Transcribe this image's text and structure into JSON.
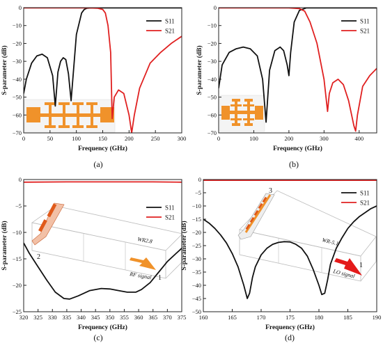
{
  "colors": {
    "s11": "#111111",
    "s21": "#e02020",
    "inset": "#f0922a",
    "inset_dark": "#e05a1a"
  },
  "chart_data": [
    {
      "type": "line",
      "label": "(a)",
      "xlabel": "Frequency (GHz)",
      "ylabel": "S-parameter (dB)",
      "xlim": [
        0,
        300
      ],
      "ylim": [
        -70,
        0
      ],
      "xticks": [
        0,
        50,
        100,
        150,
        200,
        250,
        300
      ],
      "yticks": [
        0,
        -10,
        -20,
        -30,
        -40,
        -50,
        -60,
        -70
      ],
      "legend_position": "top-right",
      "series": [
        {
          "name": "S11",
          "x": [
            0,
            5,
            15,
            25,
            35,
            45,
            55,
            60,
            65,
            70,
            75,
            80,
            85,
            90,
            100,
            110,
            115,
            120,
            130,
            150,
            300
          ],
          "y": [
            -48,
            -40,
            -31,
            -27,
            -26,
            -28,
            -38,
            -55,
            -36,
            -30,
            -28,
            -29,
            -37,
            -52,
            -15,
            -3,
            -1,
            -0.3,
            -0.1,
            -0.1,
            -0.1
          ]
        },
        {
          "name": "S21",
          "x": [
            0,
            80,
            120,
            140,
            150,
            155,
            160,
            165,
            168,
            172,
            180,
            190,
            200,
            205,
            210,
            220,
            240,
            260,
            280,
            300
          ],
          "y": [
            -0.1,
            -0.1,
            -0.1,
            -0.3,
            -1,
            -3,
            -10,
            -25,
            -62,
            -50,
            -46,
            -48,
            -60,
            -70,
            -60,
            -45,
            -31,
            -25,
            -20,
            -16
          ]
        }
      ]
    },
    {
      "type": "line",
      "label": "(b)",
      "xlabel": "Frequency (GHz)",
      "ylabel": "S-parameter (dB)",
      "xlim": [
        0,
        450
      ],
      "ylim": [
        -70,
        0
      ],
      "xticks": [
        0,
        100,
        200,
        300,
        400
      ],
      "yticks": [
        0,
        -10,
        -20,
        -30,
        -40,
        -50,
        -60,
        -70
      ],
      "legend_position": "top-right",
      "series": [
        {
          "name": "S11",
          "x": [
            0,
            10,
            30,
            50,
            70,
            90,
            110,
            125,
            135,
            145,
            160,
            175,
            185,
            195,
            200,
            205,
            215,
            230,
            250,
            450
          ],
          "y": [
            -45,
            -32,
            -25,
            -23,
            -22,
            -23,
            -27,
            -40,
            -64,
            -35,
            -24,
            -22,
            -24,
            -32,
            -38,
            -25,
            -8,
            -1.5,
            -0.1,
            -0.1
          ]
        },
        {
          "name": "S21",
          "x": [
            0,
            200,
            230,
            245,
            260,
            280,
            300,
            310,
            315,
            325,
            340,
            355,
            370,
            385,
            390,
            395,
            410,
            430,
            450
          ],
          "y": [
            -0.1,
            -0.1,
            -0.5,
            -2,
            -8,
            -20,
            -40,
            -58,
            -48,
            -42,
            -40,
            -43,
            -52,
            -66,
            -69,
            -60,
            -44,
            -38,
            -34
          ]
        }
      ]
    },
    {
      "type": "line",
      "label": "(c)",
      "xlabel": "Frequency (GHz)",
      "ylabel": "S-parameter (dB)",
      "xlim": [
        320,
        375
      ],
      "ylim": [
        -25,
        0
      ],
      "xticks": [
        320,
        325,
        330,
        335,
        340,
        345,
        350,
        355,
        360,
        365,
        370,
        375
      ],
      "yticks": [
        0,
        -5,
        -10,
        -15,
        -20,
        -25
      ],
      "legend_position": "center-right",
      "series": [
        {
          "name": "S11",
          "x": [
            320,
            322,
            325,
            328,
            331,
            334,
            336,
            339,
            343,
            347,
            350,
            353,
            356,
            359,
            361,
            364,
            367,
            370,
            373,
            375
          ],
          "y": [
            -12,
            -14,
            -16.5,
            -19,
            -21.3,
            -22.5,
            -22.6,
            -22,
            -21,
            -20.6,
            -20.7,
            -21,
            -21.3,
            -21.3,
            -20.8,
            -19.5,
            -17.5,
            -15.5,
            -14,
            -13
          ]
        },
        {
          "name": "S21",
          "x": [
            320,
            335,
            350,
            365,
            375
          ],
          "y": [
            -0.5,
            -0.45,
            -0.45,
            -0.45,
            -0.5
          ]
        }
      ],
      "annotations": [
        "WR2.8",
        "RF signal",
        "1",
        "2"
      ]
    },
    {
      "type": "line",
      "label": "(d)",
      "xlabel": "Frequency (GHz)",
      "ylabel": "S-parameter (dB)",
      "xlim": [
        160,
        190
      ],
      "ylim": [
        -50,
        0
      ],
      "xticks": [
        160,
        165,
        170,
        175,
        180,
        185,
        190
      ],
      "yticks": [
        0,
        -5,
        -10,
        -15,
        -20,
        -25,
        -30,
        -35,
        -40,
        -45,
        -50
      ],
      "legend_position": "top-right",
      "series": [
        {
          "name": "S11",
          "x": [
            160,
            161,
            162,
            163,
            164,
            165,
            166,
            167,
            167.6,
            168,
            168.5,
            169,
            170,
            171,
            172,
            173,
            174,
            175,
            176,
            177,
            178,
            179,
            180,
            180.5,
            181,
            181.5,
            182,
            183,
            184,
            185,
            186,
            187,
            188,
            189,
            190
          ],
          "y": [
            -15,
            -16.5,
            -18.5,
            -21,
            -24,
            -28,
            -33,
            -40,
            -45,
            -43,
            -37,
            -33,
            -28.5,
            -26,
            -24.5,
            -23.8,
            -23.5,
            -23.6,
            -24.5,
            -26,
            -29,
            -34,
            -40,
            -43.5,
            -43,
            -38,
            -32,
            -26,
            -22,
            -18.5,
            -16,
            -14,
            -12.5,
            -11,
            -10
          ]
        },
        {
          "name": "S21",
          "x": [
            160,
            170,
            180,
            190
          ],
          "y": [
            -0.3,
            -0.3,
            -0.3,
            -0.3
          ]
        }
      ],
      "annotations": [
        "WR-5.1",
        "LO signal",
        "1",
        "3"
      ]
    }
  ]
}
